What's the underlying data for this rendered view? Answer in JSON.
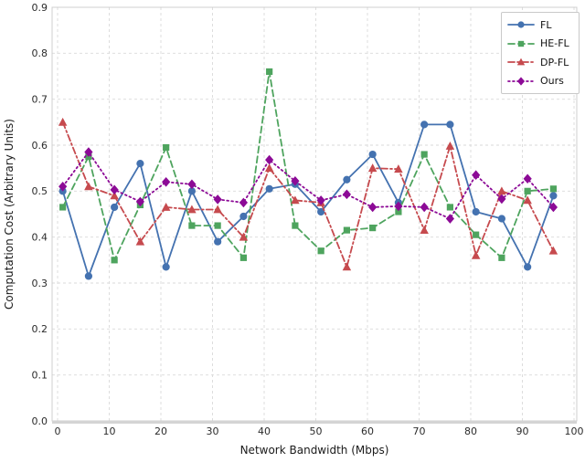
{
  "chart_data": {
    "type": "line",
    "title": "",
    "xlabel": "Network Bandwidth (Mbps)",
    "ylabel": "Computation Cost (Arbitrary Units)",
    "xlim": [
      0,
      100
    ],
    "ylim": [
      0.0,
      0.9
    ],
    "grid": true,
    "legend_position": "upper right",
    "x_ticks": [
      0,
      10,
      20,
      30,
      40,
      50,
      60,
      70,
      80,
      90,
      100
    ],
    "x_tick_labels": [
      "0",
      "10",
      "20",
      "30",
      "40",
      "50",
      "60",
      "70",
      "80",
      "90",
      "100"
    ],
    "y_ticks": [
      0.0,
      0.1,
      0.2,
      0.3,
      0.4,
      0.5,
      0.6,
      0.7,
      0.8,
      0.9
    ],
    "y_tick_labels": [
      "0.0",
      "0.1",
      "0.2",
      "0.3",
      "0.4",
      "0.5",
      "0.6",
      "0.7",
      "0.8",
      "0.9"
    ],
    "x": [
      1,
      6,
      11,
      16,
      21,
      26,
      31,
      36,
      41,
      46,
      51,
      56,
      61,
      66,
      71,
      76,
      81,
      86,
      91,
      96
    ],
    "series": [
      {
        "name": "FL",
        "color": "#4472b0",
        "linestyle": "solid",
        "marker": "circle",
        "values": [
          0.5,
          0.315,
          0.465,
          0.56,
          0.335,
          0.5,
          0.39,
          0.445,
          0.505,
          0.515,
          0.455,
          0.525,
          0.58,
          0.475,
          0.645,
          0.645,
          0.455,
          0.44,
          0.335,
          0.49
        ]
      },
      {
        "name": "HE-FL",
        "color": "#4ea45e",
        "linestyle": "dashed",
        "marker": "square",
        "values": [
          0.465,
          0.575,
          0.35,
          0.47,
          0.595,
          0.425,
          0.425,
          0.355,
          0.76,
          0.425,
          0.37,
          0.415,
          0.42,
          0.455,
          0.58,
          0.465,
          0.405,
          0.355,
          0.5,
          0.505
        ]
      },
      {
        "name": "DP-FL",
        "color": "#c64a4e",
        "linestyle": "dashdot",
        "marker": "triangle",
        "values": [
          0.65,
          0.51,
          0.49,
          0.39,
          0.465,
          0.46,
          0.46,
          0.4,
          0.55,
          0.48,
          0.475,
          0.335,
          0.55,
          0.548,
          0.415,
          0.598,
          0.36,
          0.5,
          0.48,
          0.37
        ]
      },
      {
        "name": "Ours",
        "color": "#8c0a96",
        "linestyle": "dotted",
        "marker": "diamond",
        "values": [
          0.51,
          0.585,
          0.503,
          0.477,
          0.52,
          0.515,
          0.482,
          0.475,
          0.568,
          0.522,
          0.48,
          0.493,
          0.465,
          0.467,
          0.465,
          0.44,
          0.535,
          0.483,
          0.527,
          0.465
        ]
      }
    ]
  }
}
